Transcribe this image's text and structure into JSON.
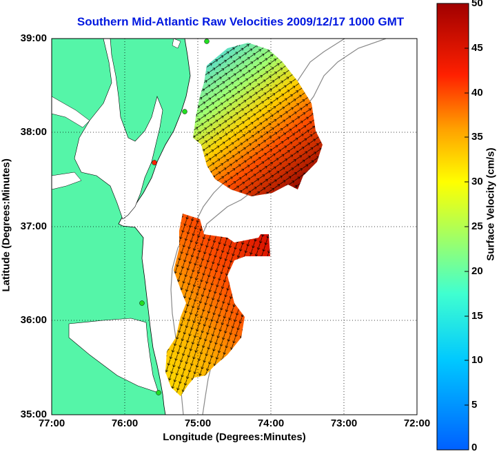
{
  "title": "Southern Mid-Atlantic Raw Velocities 2009/12/17 1000 GMT",
  "axes": {
    "xlabel": "Longitude (Degrees:Minutes)",
    "ylabel": "Latitude (Degrees:Minutes)",
    "x_ticks": [
      "77:00",
      "76:00",
      "75:00",
      "74:00",
      "73:00",
      "72:00"
    ],
    "y_ticks": [
      "39:00",
      "38:00",
      "37:00",
      "36:00",
      "35:00"
    ],
    "x_range_deg_w": [
      77,
      72
    ],
    "y_range_deg_n": [
      35,
      39
    ]
  },
  "colorbar": {
    "label": "Surface Velocity (cm/s)",
    "ticks": [
      "50",
      "45",
      "40",
      "35",
      "30",
      "25",
      "20",
      "15",
      "10",
      "5",
      "0"
    ],
    "range": [
      0,
      50
    ],
    "colormap": "jet"
  },
  "colors": {
    "land": "#55f5a8",
    "title": "#0018e0",
    "stations_active": "#22dd22",
    "station_alert": "#ff2200"
  },
  "map_features": [
    "land",
    "coastline",
    "bathymetry contour",
    "gridlines",
    "velocity vectors",
    "HF radar stations"
  ]
}
